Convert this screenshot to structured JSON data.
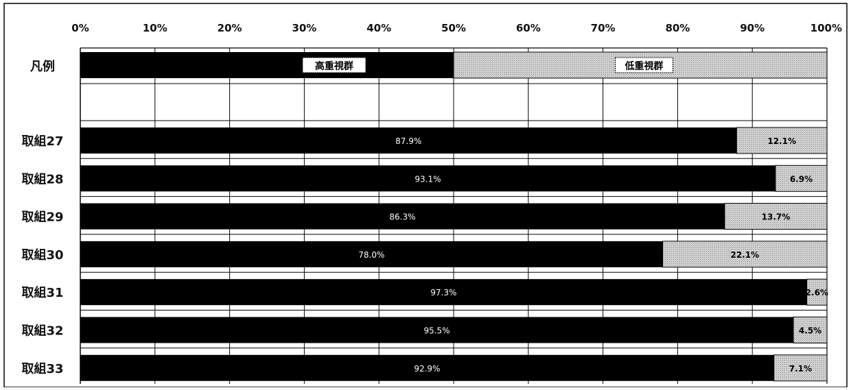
{
  "chart_data": {
    "type": "bar",
    "orientation": "horizontal",
    "stacked": true,
    "percent": true,
    "xlim": [
      0,
      100
    ],
    "x_ticks": [
      "0%",
      "10%",
      "20%",
      "30%",
      "40%",
      "50%",
      "60%",
      "70%",
      "80%",
      "90%",
      "100%"
    ],
    "grid": true,
    "legend": {
      "row_label": "凡例",
      "high_label": "高重視群",
      "low_label": "低重視群",
      "high_share": 50,
      "low_share": 50
    },
    "categories": [
      "取組27",
      "取組28",
      "取組29",
      "取組30",
      "取組31",
      "取組32",
      "取組33"
    ],
    "series": [
      {
        "name": "高重視群",
        "values": [
          87.9,
          93.1,
          86.3,
          78.0,
          97.3,
          95.5,
          92.9
        ],
        "labels": [
          "87.9%",
          "93.1%",
          "86.3%",
          "78.0%",
          "97.3%",
          "95.5%",
          "92.9%"
        ]
      },
      {
        "name": "低重視群",
        "values": [
          12.1,
          6.9,
          13.7,
          22.1,
          2.6,
          4.5,
          7.1
        ],
        "labels": [
          "12.1%",
          "6.9%",
          "13.7%",
          "22.1%",
          "2.6%",
          "4.5%",
          "7.1%"
        ]
      }
    ],
    "colors": {
      "high": "#000000",
      "low": "#d0d0d0",
      "grid": "#000000"
    }
  }
}
